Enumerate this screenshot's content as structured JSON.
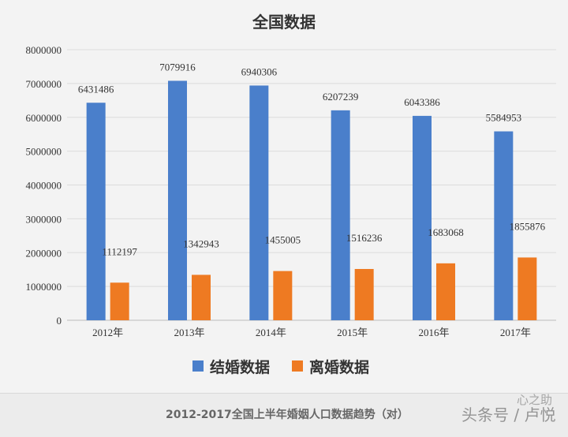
{
  "chart_data": {
    "type": "bar",
    "title": "全国数据",
    "categories": [
      "2012年",
      "2013年",
      "2014年",
      "2015年",
      "2016年",
      "2017年"
    ],
    "series": [
      {
        "name": "结婚数据",
        "color": "#4a7fcb",
        "values": [
          6431486,
          7079916,
          6940306,
          6207239,
          6043386,
          5584953
        ]
      },
      {
        "name": "离婚数据",
        "color": "#ee7a22",
        "values": [
          1112197,
          1342943,
          1455005,
          1516236,
          1683068,
          1855876
        ]
      }
    ],
    "ylim": [
      0,
      8000000
    ],
    "yticks": [
      "0",
      "1000000",
      "2000000",
      "3000000",
      "4000000",
      "5000000",
      "6000000",
      "7000000",
      "8000000"
    ],
    "grid": true,
    "legend": "bottom",
    "data_labels": true
  },
  "caption": "2012-2017全国上半年婚姻人口数据趋势（对）",
  "watermark": {
    "line1": "心之助",
    "line2": "头条号 / 卢悦"
  }
}
